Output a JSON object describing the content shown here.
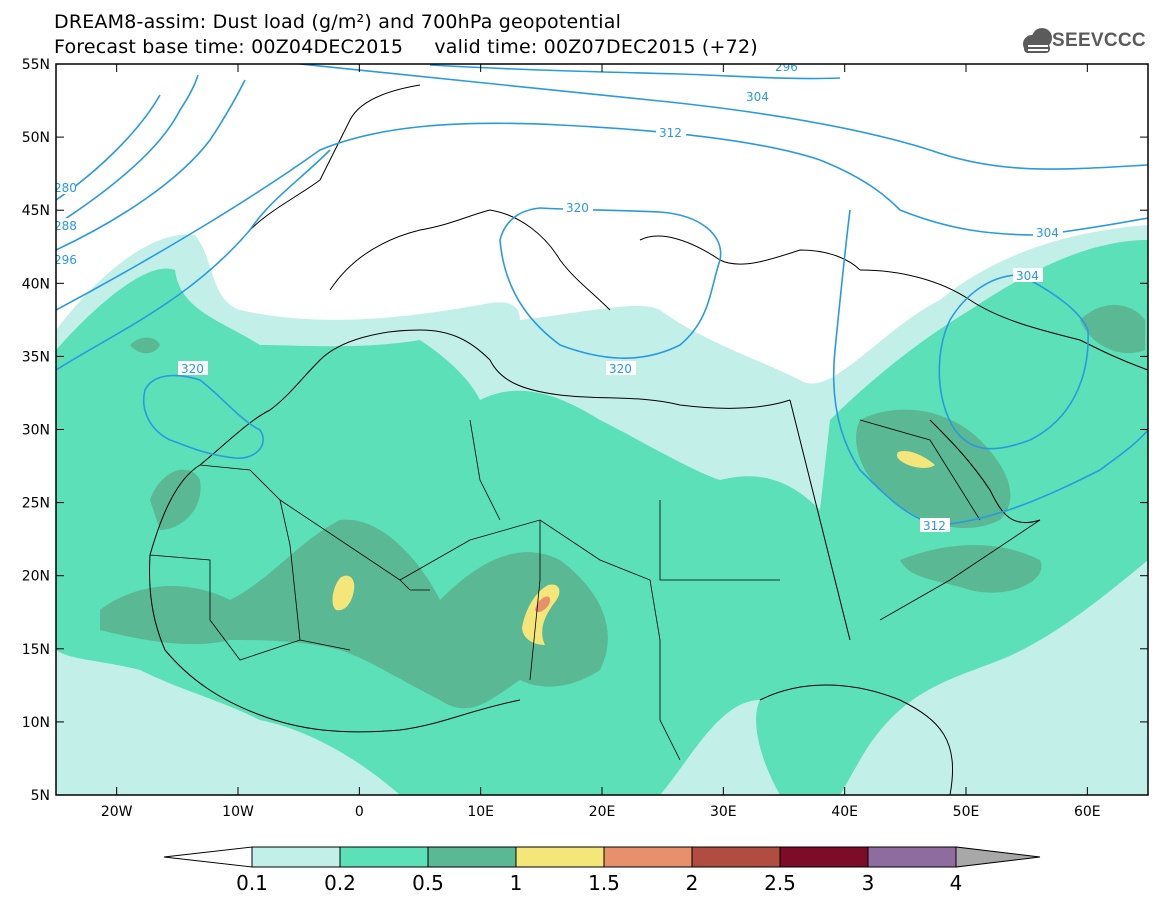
{
  "header": {
    "title_line1": "DREAM8-assim: Dust load (g/m²) and 700hPa geopotential",
    "title_line2": "Forecast base time: 00Z04DEC2015     valid time: 00Z07DEC2015 (+72)",
    "logo_text": "SEEVCCC"
  },
  "map": {
    "lon_labels": [
      "20W",
      "10W",
      "0",
      "10E",
      "20E",
      "30E",
      "40E",
      "50E",
      "60E"
    ],
    "lon_values": [
      -20,
      -10,
      0,
      10,
      20,
      30,
      40,
      50,
      60
    ],
    "lat_labels": [
      "55N",
      "50N",
      "45N",
      "40N",
      "35N",
      "30N",
      "25N",
      "20N",
      "15N",
      "10N",
      "5N"
    ],
    "lat_values": [
      55,
      50,
      45,
      40,
      35,
      30,
      25,
      20,
      15,
      10,
      5
    ],
    "lon_range": [
      -25,
      65
    ],
    "lat_range": [
      5,
      55
    ],
    "contour_labels": [
      "296",
      "304",
      "312",
      "320",
      "280",
      "288",
      "296",
      "320",
      "320",
      "304",
      "304",
      "312"
    ]
  },
  "colorbar": {
    "labels": [
      "0.1",
      "0.2",
      "0.5",
      "1",
      "1.5",
      "2",
      "2.5",
      "3",
      "4"
    ],
    "colors": [
      "#c2f0e8",
      "#5ce0b8",
      "#5ab894",
      "#f5e67a",
      "#e8906c",
      "#b04c40",
      "#7c0c28",
      "#8e6ca0",
      "#a8a8a8"
    ],
    "low_arrow_color": "#ffffff",
    "high_arrow_color": "#a8a8a8"
  },
  "colors": {
    "contour": "#2a9ae0",
    "coast": "#000000",
    "frame": "#000000"
  }
}
